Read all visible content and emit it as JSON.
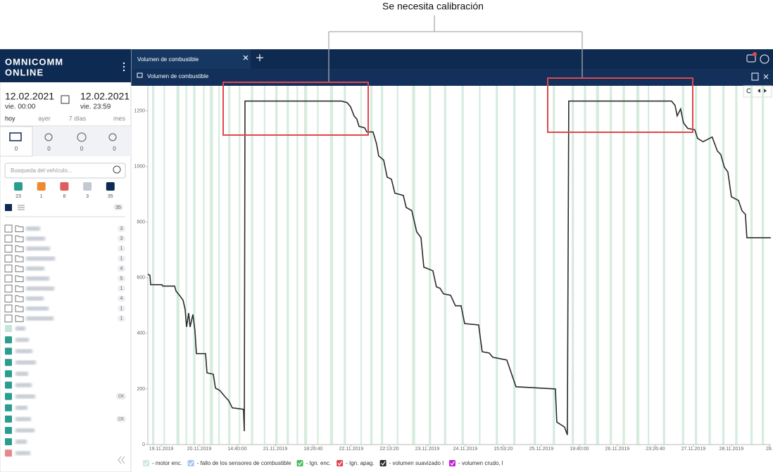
{
  "annotation": "Se necesita calibración",
  "app": {
    "tab_title": "Volumen de combustible",
    "panel_title": "Volumen de combustible"
  },
  "sidebar": {
    "logo": [
      "OMNICOMM",
      "ONLINE"
    ],
    "date_from": "12.02.2021",
    "time_from": "vie. 00:00",
    "date_to": "12.02.2021",
    "time_to": "vie. 23:59",
    "periods": [
      "hoy",
      "ayer",
      "7 días",
      "mes"
    ],
    "tab_counts": [
      0,
      0,
      0,
      0
    ],
    "search_placeholder": "Busqueda del vehículo...",
    "status": [
      {
        "color": "#2a9d8f",
        "count": 23
      },
      {
        "color": "#ee8a2e",
        "count": 1
      },
      {
        "color": "#e05c5c",
        "count": 8
      },
      {
        "color": "#c3c9d0",
        "count": 3
      },
      {
        "color": "#0d2a52",
        "count": 35
      }
    ],
    "total": 35,
    "folder_badges": [
      3,
      3,
      1,
      1,
      4,
      5,
      1,
      4,
      1,
      1
    ],
    "vehicles": [
      {
        "color": "#c3e6d8"
      },
      {
        "color": "#2a9d8f"
      },
      {
        "color": "#2a9d8f"
      },
      {
        "color": "#2a9d8f"
      },
      {
        "color": "#2a9d8f"
      },
      {
        "color": "#2a9d8f"
      },
      {
        "color": "#2a9d8f",
        "badge": "CK"
      },
      {
        "color": "#2a9d8f"
      },
      {
        "color": "#2a9d8f",
        "badge": "CK"
      },
      {
        "color": "#2a9d8f"
      },
      {
        "color": "#2a9d8f"
      },
      {
        "color": "#e58a8a"
      }
    ]
  },
  "chart_data": {
    "type": "line",
    "x": [
      -17.6,
      -14.8,
      -13.9,
      0.9,
      1.9,
      17.6,
      19.4,
      24,
      28.7,
      31.5,
      33.3,
      36.1,
      38,
      41.7,
      44.4,
      46.3,
      58.3,
      60.2,
      68.5,
      71.3,
      76.9,
      82.4,
      88.9,
      93.5,
      108.3,
      109.3,
      110.2,
      237,
      244.4,
      249,
      253.7,
      257.4,
      260.2,
      267.6,
      270.4,
      278.7,
      283.3,
      286.1,
      292.6,
      297.2,
      302.8,
      307.4,
      318.5,
      322.2,
      329.6,
      336.1,
      341.7,
      345.4,
      357.4,
      362,
      366.7,
      371.3,
      380.6,
      387,
      394.4,
      399.1,
      417.6,
      422.2,
      431.5,
      436.1,
      445.4,
      454.6,
      466.7,
      518.5,
      520.4,
      530.6,
      534.3,
      536.1,
      671.3,
      675.9,
      678.7,
      683.3,
      687,
      692.6,
      701.9,
      705.6,
      712.8,
      724.8,
      731.5,
      736.1,
      740.7,
      745.4,
      750,
      759.3,
      763.9,
      768.5,
      770.4,
      801.9
    ],
    "series": [
      {
        "name": "- volumen suavizado l",
        "color": "#2b2b2b",
        "values": [
          613,
          608,
          575,
          575,
          570,
          570,
          552,
          537,
          519,
          486,
          423,
          473,
          423,
          468,
          410,
          327,
          327,
          258,
          253,
          203,
          195,
          177,
          157,
          132,
          127,
          48,
          1235,
          1235,
          1230,
          1215,
          1182,
          1170,
          1144,
          1139,
          1124,
          1124,
          1081,
          1038,
          1023,
          962,
          954,
          904,
          896,
          853,
          841,
          765,
          744,
          638,
          625,
          567,
          562,
          542,
          537,
          499,
          499,
          435,
          430,
          334,
          329,
          314,
          309,
          304,
          208,
          200,
          81,
          63,
          35,
          1235,
          1235,
          1220,
          1182,
          1207,
          1157,
          1137,
          1132,
          1101,
          1089,
          1106,
          1056,
          1043,
          998,
          980,
          891,
          878,
          841,
          828,
          744,
          744
        ]
      }
    ],
    "engine_on": {
      "name": "- motor enc.",
      "color": "#cfe9d8",
      "intervals": [
        [
          -12,
          -9
        ],
        [
          3,
          5
        ],
        [
          20,
          24
        ],
        [
          32,
          34
        ],
        [
          42,
          45
        ],
        [
          55,
          57
        ],
        [
          64,
          68
        ],
        [
          75,
          77
        ],
        [
          88,
          91
        ],
        [
          102,
          104
        ],
        [
          118,
          121
        ],
        [
          135,
          137
        ],
        [
          150,
          153
        ],
        [
          165,
          168
        ],
        [
          178,
          180
        ],
        [
          188,
          192
        ],
        [
          205,
          207
        ],
        [
          222,
          226
        ],
        [
          240,
          243
        ],
        [
          262,
          264
        ],
        [
          275,
          278
        ],
        [
          289,
          292
        ],
        [
          310,
          312
        ],
        [
          330,
          334
        ],
        [
          352,
          355
        ],
        [
          372,
          375
        ],
        [
          395,
          398
        ],
        [
          418,
          420
        ],
        [
          440,
          443
        ],
        [
          463,
          466
        ],
        [
          490,
          493
        ],
        [
          515,
          518
        ],
        [
          540,
          543
        ],
        [
          556,
          559
        ],
        [
          572,
          576
        ],
        [
          590,
          593
        ],
        [
          607,
          610
        ],
        [
          625,
          629
        ],
        [
          640,
          642
        ],
        [
          660,
          663
        ],
        [
          685,
          688
        ],
        [
          702,
          705
        ],
        [
          720,
          723
        ],
        [
          738,
          741
        ],
        [
          755,
          758
        ],
        [
          775,
          778
        ],
        [
          790,
          793
        ]
      ]
    },
    "legend": [
      {
        "name": "- fallo de los sensores de combustible",
        "color": "#a9c7ec"
      },
      {
        "name": "- Ign. enc.",
        "color": "#4cbb5a"
      },
      {
        "name": "- Ign. apag.",
        "color": "#e0464e"
      },
      {
        "name": "- volumen crudo, l",
        "color": "#c21fd6"
      }
    ],
    "xlim": [
      -17.6,
      802
    ],
    "xticks": [
      {
        "value": 0,
        "label": "19.11.2019"
      },
      {
        "value": 50,
        "label": "20.11.2019"
      },
      {
        "value": 100,
        "label": "14:40:00"
      },
      {
        "value": 150,
        "label": "21.11.2019"
      },
      {
        "value": 200,
        "label": "18:26:40"
      },
      {
        "value": 250,
        "label": "22.11.2019"
      },
      {
        "value": 300,
        "label": "22:13:20"
      },
      {
        "value": 350,
        "label": "23.11.2019"
      },
      {
        "value": 400,
        "label": "24.11.2019"
      },
      {
        "value": 450,
        "label": "15:53:20"
      },
      {
        "value": 500,
        "label": "25.11.2019"
      },
      {
        "value": 550,
        "label": "19:40:00"
      },
      {
        "value": 600,
        "label": "26.11.2019"
      },
      {
        "value": 650,
        "label": "23:26:40"
      },
      {
        "value": 700,
        "label": "27.11.2019"
      },
      {
        "value": 750,
        "label": "28.11.2019"
      },
      {
        "value": 800,
        "label": "28."
      }
    ],
    "ylim": [
      0,
      1290
    ],
    "yticks": [
      0,
      200,
      400,
      600,
      800,
      1000,
      1200
    ]
  }
}
